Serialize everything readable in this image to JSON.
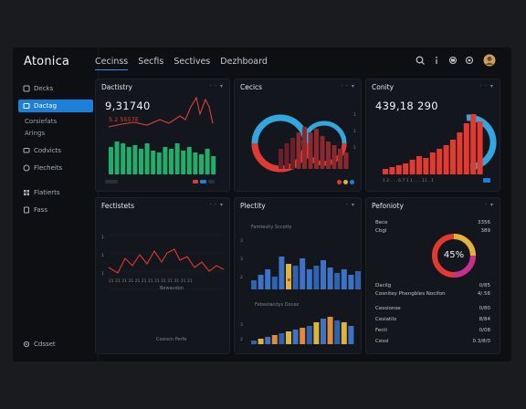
{
  "brand": "Atonica",
  "topnav": [
    "Cecinss",
    "Secfis",
    "Sectives",
    "Dezhboard"
  ],
  "top_icons": [
    "search-icon",
    "info-icon",
    "sync-icon",
    "gear-icon",
    "avatar"
  ],
  "sidebar": {
    "items": [
      {
        "label": "Decks",
        "icon": "home-icon"
      },
      {
        "label": "Dactag",
        "icon": "layers-icon",
        "active": true
      }
    ],
    "subs": [
      "Corsiefats",
      "Arings"
    ],
    "items2": [
      {
        "label": "Codvicts",
        "icon": "chat-icon"
      },
      {
        "label": "Flecheits",
        "icon": "globe-icon"
      },
      {
        "label": "Flatierts",
        "icon": "grid-icon"
      },
      {
        "label": "Fass",
        "icon": "doc-icon"
      }
    ],
    "footer": {
      "label": "Cdsset",
      "icon": "settings-icon"
    }
  },
  "panels": {
    "p1": {
      "title": "Dactistry",
      "controls": "· · ▾",
      "value": "9,31740",
      "sub": "5.2 5S57E"
    },
    "p2": {
      "title": "Cecics",
      "controls": "· · ▾"
    },
    "p3": {
      "title": "Conity",
      "controls": "· · ▾",
      "value": "439,18 290"
    },
    "p4": {
      "title": "Fectistets",
      "controls": "· · ▾",
      "footer": "Cosiscn Perfe"
    },
    "p5": {
      "title": "Plectity",
      "controls": "· ▾",
      "legend1": "Famtesity Sccotty",
      "legend2": "Febestacitys Doces"
    },
    "p6": {
      "title": "Pefonioty",
      "controls": "· ▾",
      "ring_label": "45%",
      "rows_top": [
        {
          "k": "Bece",
          "v": "3356"
        },
        {
          "k": "Cbgl",
          "v": "389"
        }
      ],
      "rows_mid": [
        {
          "k": "Dacilg",
          "v": "0/85"
        },
        {
          "k": "Cosnitey Phengbles Nocifon",
          "v": "4/.56"
        }
      ],
      "rows_bot": [
        {
          "k": "Cessionse",
          "v": "0/80"
        },
        {
          "k": "Ceslatils",
          "v": "8/84"
        },
        {
          "k": "Fecti",
          "v": "0/08"
        },
        {
          "k": "Cessl",
          "v": "0.3/8/0"
        }
      ]
    }
  },
  "colors": {
    "accent": "#1c7fd8",
    "green": "#1fae6c",
    "red": "#e23a2f",
    "cyan": "#33a6dd",
    "yellow": "#e0b43a",
    "blue": "#2f63b0"
  }
}
